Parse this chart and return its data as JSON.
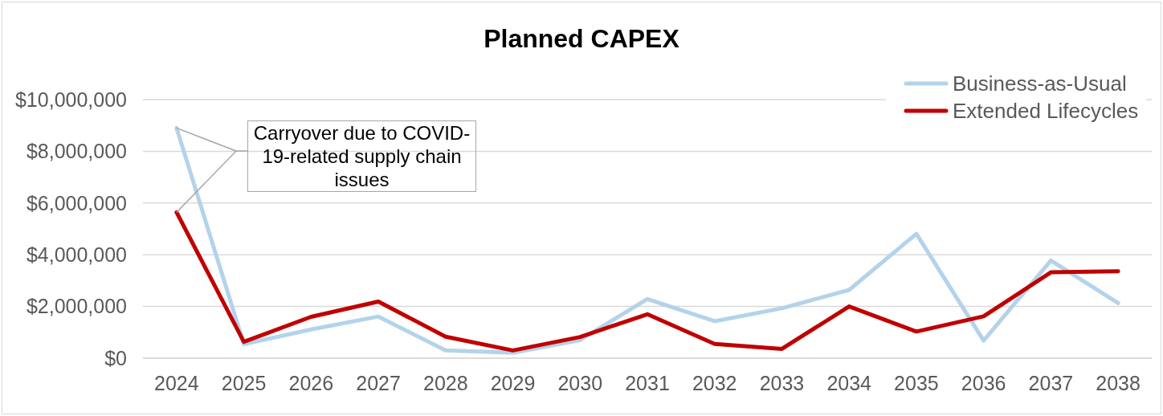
{
  "chart_data": {
    "type": "line",
    "title": "Planned CAPEX",
    "categories": [
      "2024",
      "2025",
      "2026",
      "2027",
      "2028",
      "2029",
      "2030",
      "2031",
      "2032",
      "2033",
      "2034",
      "2035",
      "2036",
      "2037",
      "2038"
    ],
    "series": [
      {
        "name": "Business-as-Usual",
        "color": "#b4d3ea",
        "values": [
          8900000,
          540000,
          1110000,
          1610000,
          300000,
          210000,
          700000,
          2290000,
          1430000,
          1930000,
          2640000,
          4810000,
          680000,
          3780000,
          2130000
        ]
      },
      {
        "name": "Extended Lifecycles",
        "color": "#c00000",
        "values": [
          5640000,
          630000,
          1600000,
          2190000,
          830000,
          300000,
          820000,
          1700000,
          550000,
          360000,
          2000000,
          1030000,
          1620000,
          3320000,
          3360000
        ]
      }
    ],
    "ylim": [
      0,
      10000000
    ],
    "yticks": [
      {
        "value": 0,
        "label": "$0"
      },
      {
        "value": 2000000,
        "label": "$2,000,000"
      },
      {
        "value": 4000000,
        "label": "$4,000,000"
      },
      {
        "value": 6000000,
        "label": "$6,000,000"
      },
      {
        "value": 8000000,
        "label": "$8,000,000"
      },
      {
        "value": 10000000,
        "label": "$10,000,000"
      }
    ],
    "grid": "y",
    "legend": "top right",
    "marker": "none",
    "line_style": "solid",
    "annotations": [
      {
        "text": "Carryover due to COVID-19-related supply chain issues",
        "x": "2024",
        "y": 8900000
      }
    ]
  }
}
